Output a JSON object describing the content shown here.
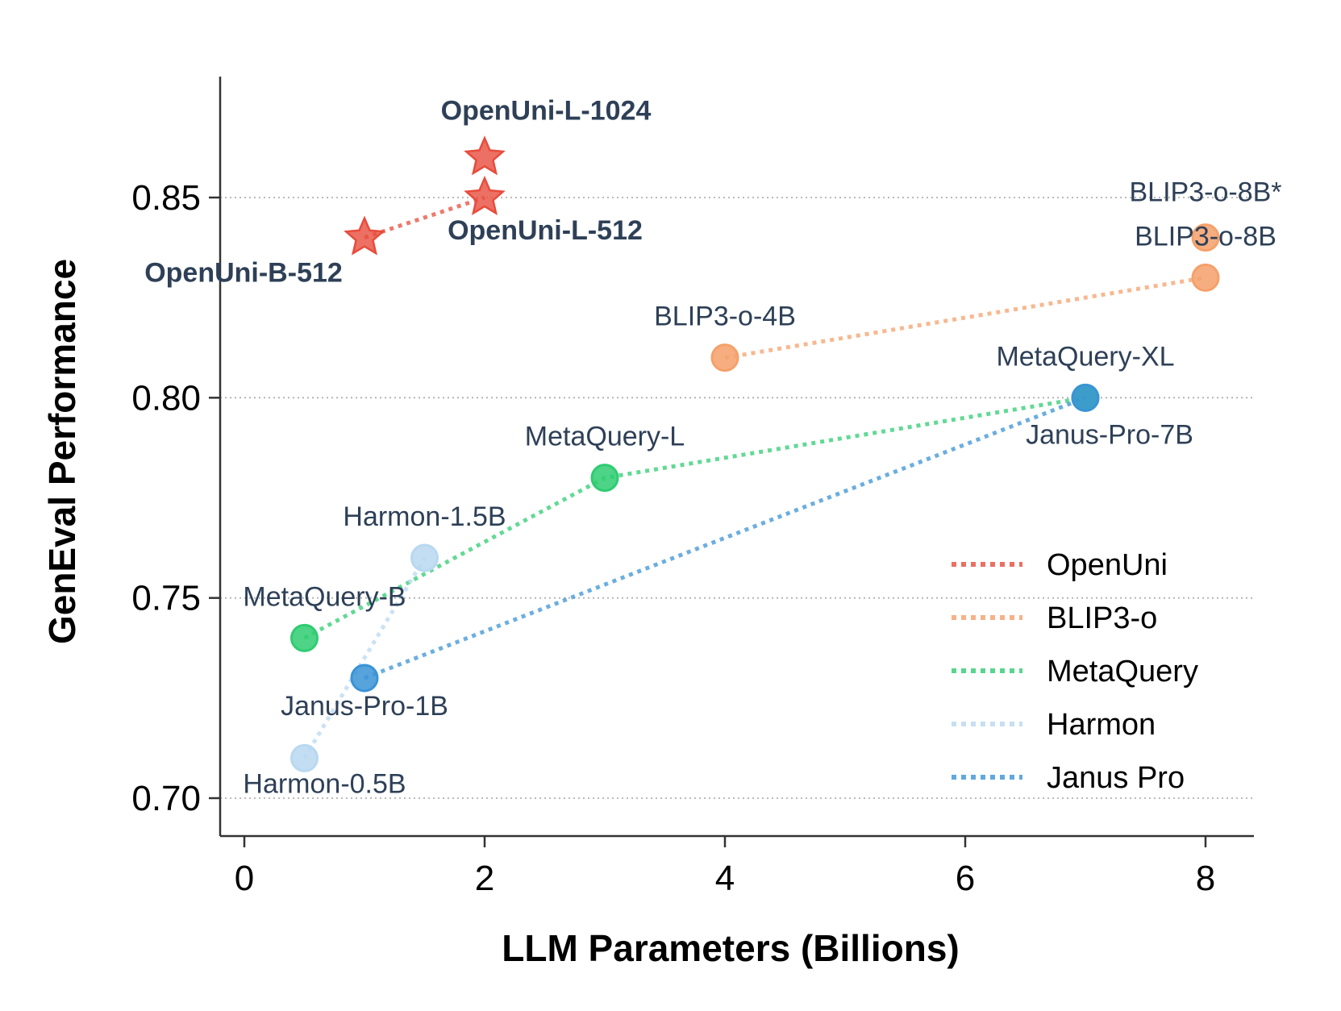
{
  "chart_data": {
    "type": "scatter",
    "xlabel": "LLM Parameters (Billions)",
    "ylabel": "GenEval Performance",
    "xlim": [
      -0.2,
      8.4
    ],
    "ylim": [
      0.69,
      0.88
    ],
    "xticks": [
      0,
      2,
      4,
      6,
      8
    ],
    "xtick_labels": [
      "0",
      "2",
      "4",
      "6",
      "8"
    ],
    "yticks": [
      0.7,
      0.75,
      0.8,
      0.85
    ],
    "ytick_labels": [
      "0.70",
      "0.75",
      "0.80",
      "0.85"
    ],
    "grid": "horizontal dotted",
    "legend_position": "lower-right",
    "series": [
      {
        "name": "OpenUni",
        "color": "#e74c3c",
        "marker": "star",
        "label_style": "bold",
        "points": [
          {
            "x": 1,
            "y": 0.84,
            "label": "OpenUni-B-512"
          },
          {
            "x": 2,
            "y": 0.85,
            "label": "OpenUni-L-512"
          },
          {
            "x": 2,
            "y": 0.86,
            "label": "OpenUni-L-1024"
          }
        ]
      },
      {
        "name": "BLIP3-o",
        "color": "#f5a06a",
        "marker": "circle",
        "label_style": "normal",
        "points": [
          {
            "x": 4,
            "y": 0.81,
            "label": "BLIP3-o-4B"
          },
          {
            "x": 8,
            "y": 0.83,
            "label": "BLIP3-o-8B"
          },
          {
            "x": 8,
            "y": 0.84,
            "label": "BLIP3-o-8B*"
          }
        ]
      },
      {
        "name": "MetaQuery",
        "color": "#2ecc71",
        "marker": "circle",
        "label_style": "normal",
        "points": [
          {
            "x": 0.5,
            "y": 0.74,
            "label": "MetaQuery-B"
          },
          {
            "x": 3,
            "y": 0.78,
            "label": "MetaQuery-L"
          },
          {
            "x": 7,
            "y": 0.8,
            "label": "MetaQuery-XL"
          }
        ]
      },
      {
        "name": "Harmon",
        "color": "#b8d8f0",
        "marker": "circle",
        "label_style": "normal",
        "points": [
          {
            "x": 0.5,
            "y": 0.71,
            "label": "Harmon-0.5B"
          },
          {
            "x": 1.5,
            "y": 0.76,
            "label": "Harmon-1.5B"
          }
        ]
      },
      {
        "name": "Janus Pro",
        "color": "#3a93d6",
        "marker": "circle",
        "label_style": "normal",
        "points": [
          {
            "x": 1,
            "y": 0.73,
            "label": "Janus-Pro-1B"
          },
          {
            "x": 7,
            "y": 0.8,
            "label": "Janus-Pro-7B"
          }
        ]
      }
    ]
  }
}
